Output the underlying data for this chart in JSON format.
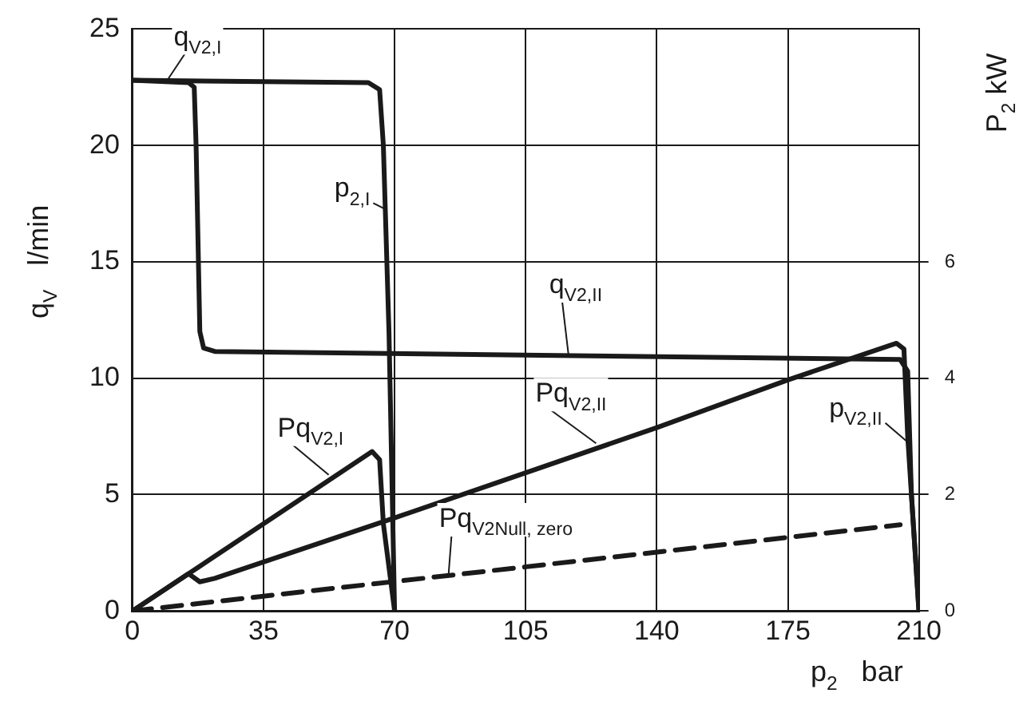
{
  "chart_data": {
    "type": "line",
    "xlabel": "p$_{2}$   bar",
    "ylabel": "q$_{V}$   l/min",
    "y2label": "P$_{2}$ kW",
    "xlim": [
      0,
      210
    ],
    "xticks": [
      0,
      35,
      70,
      105,
      140,
      175,
      210
    ],
    "ylim": [
      0,
      25
    ],
    "yticks": [
      0,
      5,
      10,
      15,
      20,
      25
    ],
    "y2lim": [
      0,
      10
    ],
    "y2ticks": [
      0,
      2,
      4,
      6
    ],
    "grid": true,
    "legend": false,
    "marker": "none",
    "line_style": "solid",
    "series": [
      {
        "color": "#1a1a1a",
        "x": [
          0,
          63,
          66,
          67,
          68.5,
          70
        ],
        "values": [
          22.8,
          22.7,
          22.4,
          20,
          12,
          0
        ]
      },
      {
        "color": "#1a1a1a",
        "x": [
          0,
          15,
          16.5,
          17,
          18,
          19,
          22,
          100,
          205,
          207,
          208,
          210
        ],
        "values": [
          22.8,
          22.7,
          22.5,
          20,
          12,
          11.3,
          11.15,
          11,
          10.8,
          10.3,
          5,
          0
        ]
      },
      {
        "color": "#1a1a1a",
        "axis": "y2",
        "x": [
          0,
          15,
          64,
          66,
          67,
          70
        ],
        "values": [
          0,
          0.64,
          2.74,
          2.6,
          1.5,
          0
        ]
      },
      {
        "color": "#1a1a1a",
        "axis": "y2",
        "x": [
          0,
          15,
          18,
          22,
          70,
          140,
          175,
          204,
          206,
          207,
          210
        ],
        "values": [
          0,
          0.64,
          0.5,
          0.56,
          1.6,
          3.15,
          3.97,
          4.6,
          4.5,
          3,
          0
        ]
      },
      {
        "color": "#1a1a1a",
        "axis": "y2",
        "line_style": "dashed",
        "x": [
          0,
          205
        ],
        "values": [
          0,
          1.48
        ]
      }
    ],
    "annotations": [
      {
        "text": "q$_{V2,I}$",
        "x": 9.3,
        "y": 22.8
      },
      {
        "text": "p$_{2,I}$",
        "x": 67.7,
        "y": 17.25
      },
      {
        "text": "q$_{V2,II}$",
        "x": 116.4,
        "y": 11.05
      },
      {
        "text": "Pq$_{V2,I}$",
        "x": 52.4,
        "y": 5.85
      },
      {
        "text": "Pq$_{V2,II}$",
        "x": 123.8,
        "y": 7.2
      },
      {
        "text": "p$_{V2,II}$",
        "x": 207,
        "y": 7.25
      },
      {
        "text": "Pq$_{V2Null, zero}$",
        "x": 84.4,
        "y": 1.55
      }
    ]
  }
}
